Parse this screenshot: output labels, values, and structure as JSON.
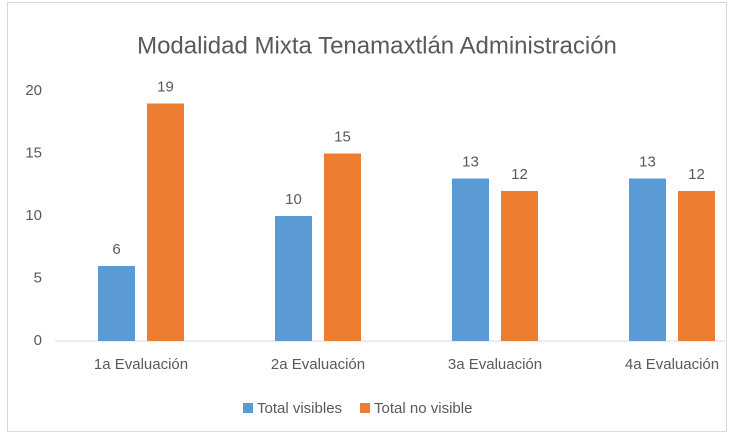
{
  "chart_data": {
    "type": "bar",
    "title": "Modalidad Mixta Tenamaxtlán Administración",
    "categories": [
      "1a Evaluación",
      "2a Evaluación",
      "3a Evaluación",
      "4a Evaluación"
    ],
    "series": [
      {
        "name": "Total visibles",
        "color": "#5b9bd5",
        "values": [
          6,
          10,
          13,
          13
        ]
      },
      {
        "name": "Total no visible",
        "color": "#ed7d31",
        "values": [
          19,
          15,
          12,
          12
        ]
      }
    ],
    "ylim": [
      0,
      20
    ],
    "yticks": [
      0,
      5,
      10,
      15,
      20
    ],
    "grid": false,
    "legend": "bottom"
  }
}
